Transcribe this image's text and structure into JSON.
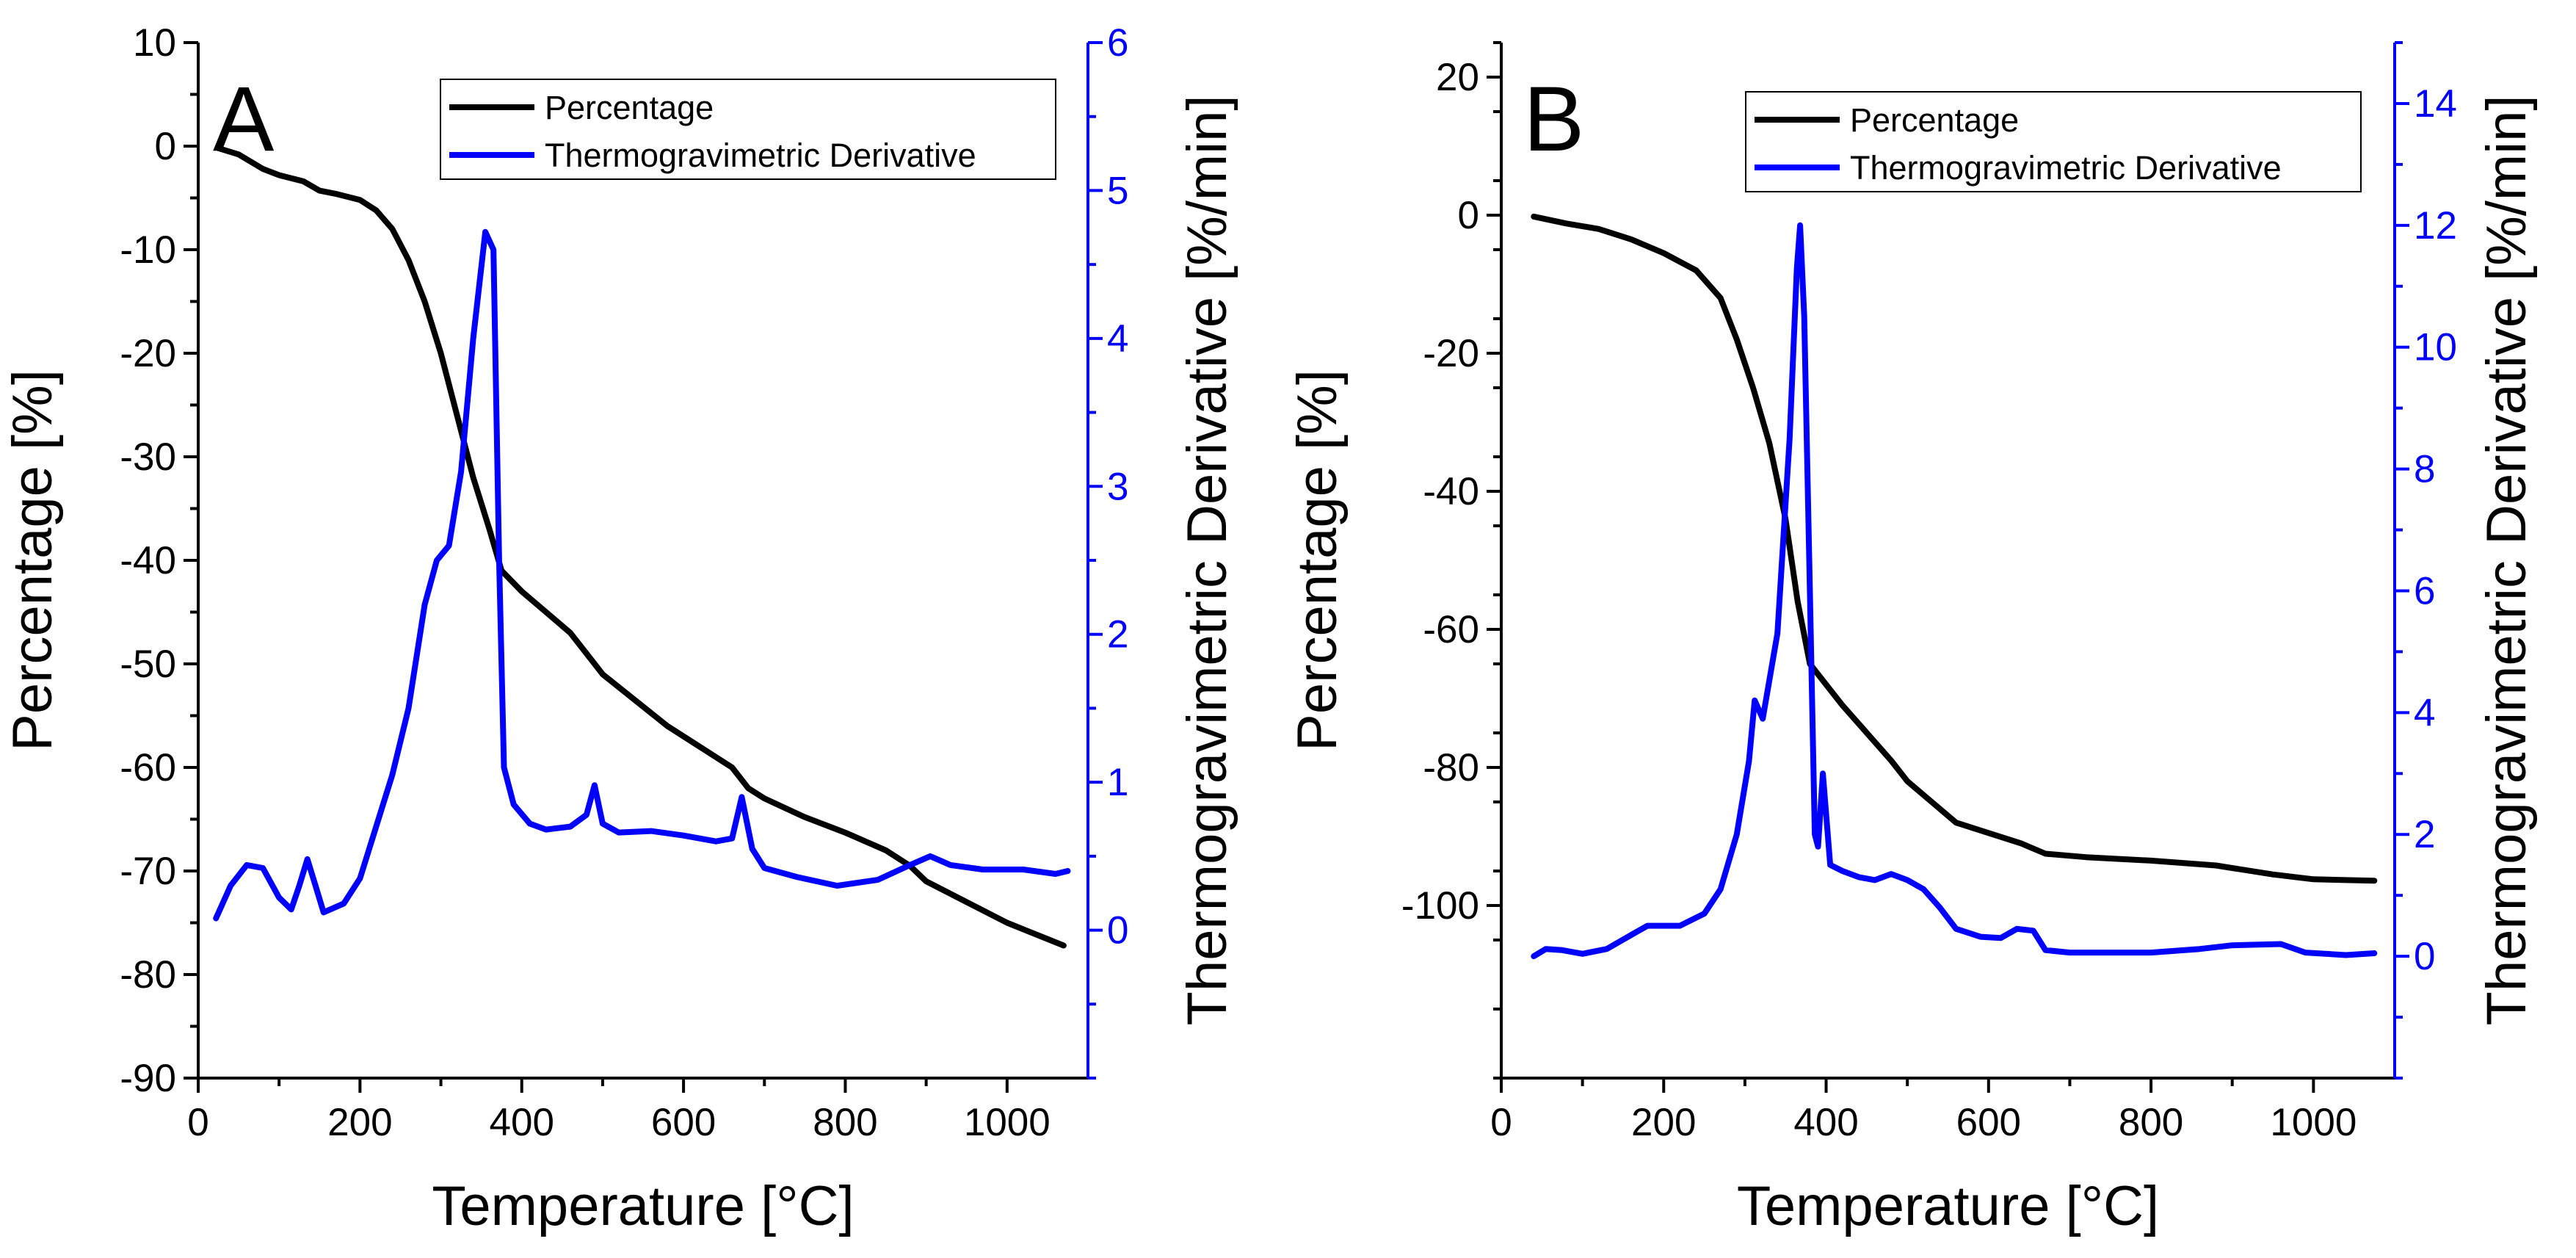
{
  "chart_data": [
    {
      "type": "line",
      "panel_label": "A",
      "xlabel": "Temperature [°C]",
      "ylabel_left": "Percentage [%]",
      "ylabel_right": "Thermogravimetric Derivative [%/min]",
      "xlim": [
        0,
        1100
      ],
      "ylim_left": [
        -90,
        10
      ],
      "ylim_right": [
        -1,
        6
      ],
      "xticks": [
        0,
        200,
        400,
        600,
        800,
        1000
      ],
      "yticks_left": [
        10,
        0,
        -10,
        -20,
        -30,
        -40,
        -50,
        -60,
        -70,
        -80,
        -90
      ],
      "yticks_right": [
        0,
        1,
        2,
        3,
        4,
        5,
        6
      ],
      "grid": false,
      "legend_position": "top-right",
      "colors": {
        "left_axis": "#000000",
        "right_axis": "#0000ff"
      },
      "series": [
        {
          "name": "Percentage",
          "axis": "left",
          "color": "#000000",
          "points": [
            [
              25,
              -0.2
            ],
            [
              50,
              -0.8
            ],
            [
              80,
              -2.2
            ],
            [
              100,
              -2.8
            ],
            [
              130,
              -3.4
            ],
            [
              150,
              -4.3
            ],
            [
              170,
              -4.6
            ],
            [
              200,
              -5.2
            ],
            [
              220,
              -6.2
            ],
            [
              240,
              -8
            ],
            [
              260,
              -11
            ],
            [
              280,
              -15
            ],
            [
              300,
              -20
            ],
            [
              320,
              -26
            ],
            [
              340,
              -32
            ],
            [
              360,
              -37
            ],
            [
              375,
              -41
            ],
            [
              400,
              -43
            ],
            [
              430,
              -45
            ],
            [
              460,
              -47
            ],
            [
              480,
              -49
            ],
            [
              500,
              -51
            ],
            [
              540,
              -53.5
            ],
            [
              580,
              -56
            ],
            [
              620,
              -58
            ],
            [
              660,
              -60
            ],
            [
              680,
              -62
            ],
            [
              700,
              -63
            ],
            [
              750,
              -64.8
            ],
            [
              800,
              -66.3
            ],
            [
              850,
              -68
            ],
            [
              880,
              -69.5
            ],
            [
              900,
              -71
            ],
            [
              950,
              -73
            ],
            [
              1000,
              -75
            ],
            [
              1070,
              -77.2
            ]
          ]
        },
        {
          "name": "Thermogravimetric Derivative",
          "axis": "right",
          "color": "#0000ff",
          "points": [
            [
              22,
              0.08
            ],
            [
              40,
              0.3
            ],
            [
              60,
              0.44
            ],
            [
              80,
              0.42
            ],
            [
              100,
              0.22
            ],
            [
              115,
              0.14
            ],
            [
              125,
              0.3
            ],
            [
              135,
              0.48
            ],
            [
              145,
              0.3
            ],
            [
              155,
              0.12
            ],
            [
              180,
              0.18
            ],
            [
              200,
              0.35
            ],
            [
              220,
              0.7
            ],
            [
              240,
              1.05
            ],
            [
              260,
              1.5
            ],
            [
              280,
              2.2
            ],
            [
              295,
              2.5
            ],
            [
              310,
              2.6
            ],
            [
              325,
              3.1
            ],
            [
              340,
              4.0
            ],
            [
              355,
              4.72
            ],
            [
              365,
              4.6
            ],
            [
              372,
              2.5
            ],
            [
              378,
              1.1
            ],
            [
              390,
              0.85
            ],
            [
              410,
              0.72
            ],
            [
              430,
              0.68
            ],
            [
              460,
              0.7
            ],
            [
              480,
              0.78
            ],
            [
              490,
              0.98
            ],
            [
              500,
              0.72
            ],
            [
              520,
              0.66
            ],
            [
              560,
              0.67
            ],
            [
              600,
              0.64
            ],
            [
              640,
              0.6
            ],
            [
              660,
              0.62
            ],
            [
              672,
              0.9
            ],
            [
              685,
              0.55
            ],
            [
              700,
              0.42
            ],
            [
              740,
              0.36
            ],
            [
              790,
              0.3
            ],
            [
              840,
              0.34
            ],
            [
              880,
              0.44
            ],
            [
              905,
              0.5
            ],
            [
              930,
              0.44
            ],
            [
              970,
              0.41
            ],
            [
              1020,
              0.41
            ],
            [
              1060,
              0.38
            ],
            [
              1075,
              0.4
            ]
          ]
        }
      ]
    },
    {
      "type": "line",
      "panel_label": "B",
      "xlabel": "Temperature [°C]",
      "ylabel_left": "Percentage [%]",
      "ylabel_right": "Thermogravimetric Derivative [%/min]",
      "xlim": [
        0,
        1100
      ],
      "ylim_left": [
        -125,
        25
      ],
      "ylim_right": [
        -2,
        15
      ],
      "xticks": [
        0,
        200,
        400,
        600,
        800,
        1000
      ],
      "yticks_left": [
        20,
        0,
        -20,
        -40,
        -60,
        -80,
        -100
      ],
      "yticks_right": [
        0,
        2,
        4,
        6,
        8,
        10,
        12,
        14
      ],
      "grid": false,
      "legend_position": "top-right",
      "colors": {
        "left_axis": "#000000",
        "right_axis": "#0000ff"
      },
      "series": [
        {
          "name": "Percentage",
          "axis": "left",
          "color": "#000000",
          "points": [
            [
              40,
              -0.2
            ],
            [
              80,
              -1.2
            ],
            [
              120,
              -2
            ],
            [
              160,
              -3.5
            ],
            [
              200,
              -5.5
            ],
            [
              240,
              -8
            ],
            [
              270,
              -12
            ],
            [
              290,
              -18
            ],
            [
              310,
              -25
            ],
            [
              330,
              -33
            ],
            [
              350,
              -44
            ],
            [
              365,
              -56
            ],
            [
              380,
              -65
            ],
            [
              400,
              -68
            ],
            [
              420,
              -71
            ],
            [
              450,
              -75
            ],
            [
              480,
              -79
            ],
            [
              500,
              -82
            ],
            [
              530,
              -85
            ],
            [
              560,
              -88
            ],
            [
              600,
              -89.5
            ],
            [
              640,
              -91
            ],
            [
              670,
              -92.5
            ],
            [
              720,
              -93
            ],
            [
              800,
              -93.5
            ],
            [
              880,
              -94.2
            ],
            [
              950,
              -95.5
            ],
            [
              1000,
              -96.2
            ],
            [
              1075,
              -96.4
            ]
          ]
        },
        {
          "name": "Thermogravimetric Derivative",
          "axis": "right",
          "color": "#0000ff",
          "points": [
            [
              40,
              0
            ],
            [
              55,
              0.12
            ],
            [
              75,
              0.1
            ],
            [
              100,
              0.04
            ],
            [
              130,
              0.12
            ],
            [
              160,
              0.35
            ],
            [
              180,
              0.5
            ],
            [
              220,
              0.5
            ],
            [
              250,
              0.7
            ],
            [
              270,
              1.1
            ],
            [
              290,
              2.0
            ],
            [
              305,
              3.2
            ],
            [
              312,
              4.2
            ],
            [
              322,
              3.9
            ],
            [
              340,
              5.3
            ],
            [
              355,
              8.5
            ],
            [
              364,
              11.3
            ],
            [
              368,
              12.0
            ],
            [
              373,
              10.5
            ],
            [
              380,
              6.0
            ],
            [
              386,
              2.0
            ],
            [
              390,
              1.8
            ],
            [
              396,
              3.0
            ],
            [
              405,
              1.5
            ],
            [
              420,
              1.4
            ],
            [
              440,
              1.3
            ],
            [
              460,
              1.25
            ],
            [
              480,
              1.35
            ],
            [
              500,
              1.25
            ],
            [
              520,
              1.1
            ],
            [
              540,
              0.8
            ],
            [
              560,
              0.45
            ],
            [
              590,
              0.32
            ],
            [
              615,
              0.3
            ],
            [
              635,
              0.45
            ],
            [
              655,
              0.42
            ],
            [
              670,
              0.1
            ],
            [
              700,
              0.06
            ],
            [
              800,
              0.06
            ],
            [
              860,
              0.12
            ],
            [
              900,
              0.18
            ],
            [
              960,
              0.2
            ],
            [
              990,
              0.06
            ],
            [
              1040,
              0.02
            ],
            [
              1075,
              0.05
            ]
          ]
        }
      ]
    }
  ]
}
